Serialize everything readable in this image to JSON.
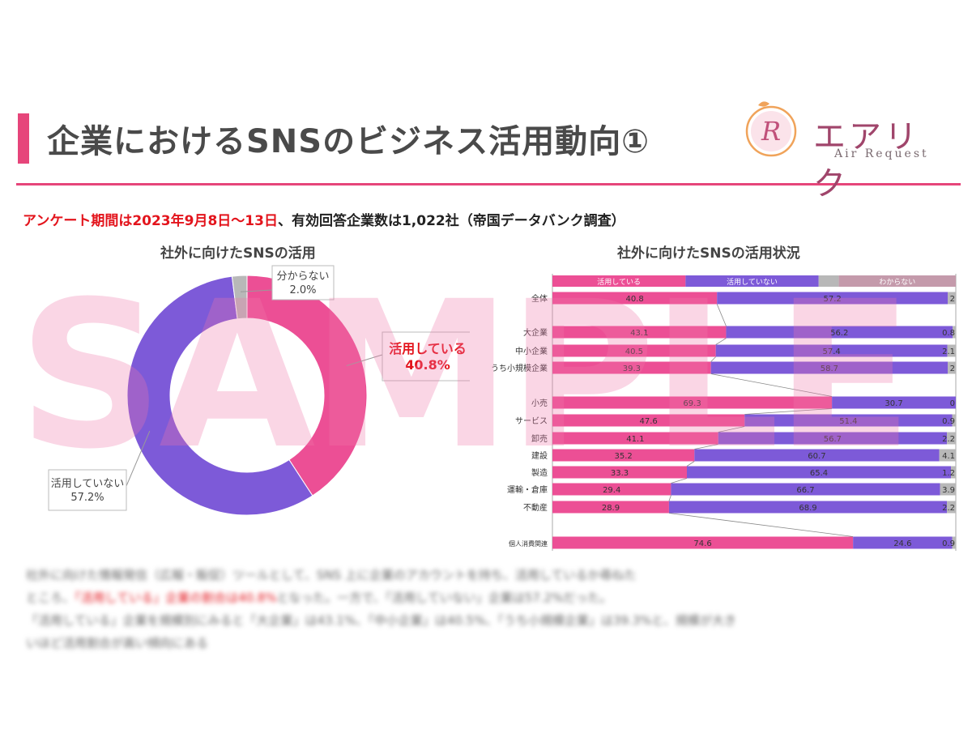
{
  "header": {
    "title": "企業におけるSNSのビジネス活用動向①",
    "logo_text": "エアリク",
    "logo_sub": "Air Request",
    "logo_mark": "R"
  },
  "survey": {
    "red_part": "アンケート期間は2023年9月8日～13日",
    "black_part": "、有効回答企業数は1,022社（帝国データバンク調査）"
  },
  "watermark": "SAMPLE",
  "colors": {
    "accent": "#e6457a",
    "pink": "#ec4f95",
    "purple": "#7d5ad8",
    "gray": "#b8b8b8",
    "red": "#e3141c"
  },
  "chart_data": [
    {
      "type": "pie",
      "title": "社外に向けたSNSの活用",
      "donut": true,
      "slices": [
        {
          "label": "活用している",
          "value": 40.8,
          "value_label": "40.8%",
          "color": "#ec4f95"
        },
        {
          "label": "活用していない",
          "value": 57.2,
          "value_label": "57.2%",
          "color": "#7d5ad8"
        },
        {
          "label": "分からない",
          "value": 2.0,
          "value_label": "2.0%",
          "color": "#b8b8b8"
        }
      ]
    },
    {
      "type": "bar",
      "orientation": "horizontal",
      "stacked": "percent",
      "title": "社外に向けたSNSの活用状況",
      "legend": [
        "活用している",
        "活用していない",
        "わからない"
      ],
      "series_colors": [
        "#ec4f95",
        "#7d5ad8",
        "#b8b8b8"
      ],
      "rows": [
        {
          "label": "全体",
          "values": [
            40.8,
            57.2,
            2
          ]
        },
        {
          "label": "大企業",
          "values": [
            43.1,
            56.2,
            0.8
          ]
        },
        {
          "label": "中小企業",
          "values": [
            40.5,
            57.4,
            2.1
          ]
        },
        {
          "label": "うち小規模企業",
          "values": [
            39.3,
            58.7,
            2
          ]
        },
        {
          "label": "小売",
          "values": [
            69.3,
            30.7,
            0
          ]
        },
        {
          "label": "サービス",
          "values": [
            47.6,
            51.4,
            0.9
          ]
        },
        {
          "label": "卸売",
          "values": [
            41.1,
            56.7,
            2.2
          ]
        },
        {
          "label": "建設",
          "values": [
            35.2,
            60.7,
            4.1
          ]
        },
        {
          "label": "製造",
          "values": [
            33.3,
            65.4,
            1.2
          ]
        },
        {
          "label": "運輸・倉庫",
          "values": [
            29.4,
            66.7,
            3.9
          ]
        },
        {
          "label": "不動産",
          "values": [
            28.9,
            68.9,
            2.2
          ]
        },
        {
          "label": "個人消費関連",
          "values": [
            74.6,
            24.6,
            0.9
          ]
        }
      ]
    }
  ],
  "body_text": {
    "line1": "社外に向けた情報発信（広報・販促）ツールとして、SNS 上に企業のアカウントを持ち、活用しているか尋ねた",
    "line2_pre": "ところ、",
    "line2_hl": "「活用している」企業の割合は40.8%",
    "line2_post": "となった。一方で、「活用していない」企業は57.2%だった。",
    "line3": "「活用している」企業を規模別にみると「大企業」は43.1%、「中小企業」は40.5%、「うち小規模企業」は39.3%と、規模が大き",
    "line4": "いほど活用割合が高い傾向にある"
  }
}
